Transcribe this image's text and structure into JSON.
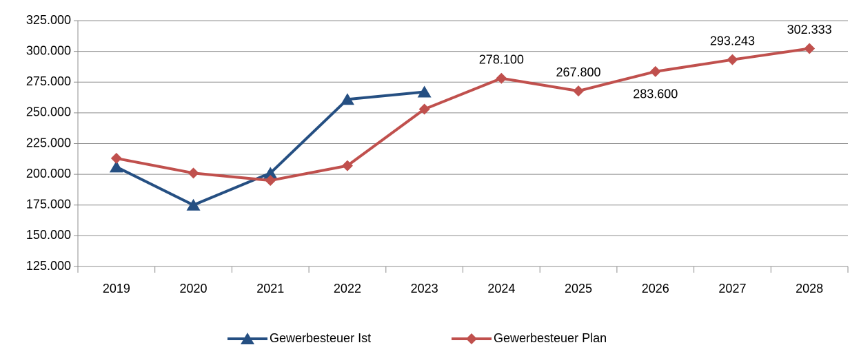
{
  "chart_data": {
    "type": "line",
    "categories": [
      "2019",
      "2020",
      "2021",
      "2022",
      "2023",
      "2024",
      "2025",
      "2026",
      "2027",
      "2028"
    ],
    "series": [
      {
        "name": "Gewerbesteuer Ist",
        "color": "#254f82",
        "marker": "triangle",
        "values": [
          206000,
          175000,
          201000,
          261000,
          267000,
          null,
          null,
          null,
          null,
          null
        ]
      },
      {
        "name": "Gewerbesteuer Plan",
        "color": "#c0504d",
        "marker": "diamond",
        "values": [
          213000,
          201000,
          195000,
          207000,
          253000,
          278100,
          267800,
          283600,
          293243,
          302333
        ],
        "value_labels": [
          null,
          null,
          null,
          null,
          null,
          "278.100",
          "267.800",
          "283.600",
          "293.243",
          "302.333"
        ]
      }
    ],
    "ylim": [
      125000,
      325000
    ],
    "yticks": [
      {
        "value": 125000,
        "label": "125.000"
      },
      {
        "value": 150000,
        "label": "150.000"
      },
      {
        "value": 175000,
        "label": "175.000"
      },
      {
        "value": 200000,
        "label": "200.000"
      },
      {
        "value": 225000,
        "label": "225.000"
      },
      {
        "value": 250000,
        "label": "250.000"
      },
      {
        "value": 275000,
        "label": "275.000"
      },
      {
        "value": 300000,
        "label": "300.000"
      },
      {
        "value": 325000,
        "label": "325.000"
      }
    ],
    "grid": true,
    "legend": "bottom"
  }
}
